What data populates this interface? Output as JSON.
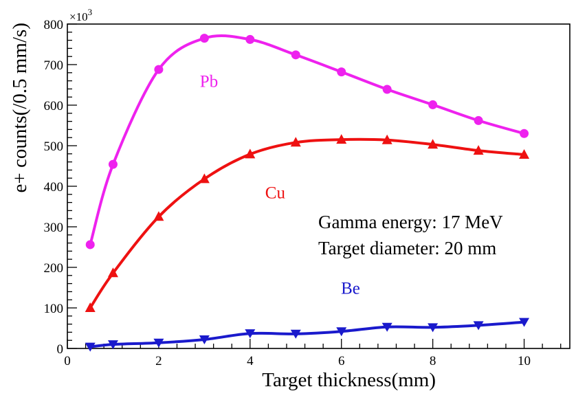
{
  "chart_data": {
    "type": "line",
    "xlabel": "Target thickness(mm)",
    "ylabel": "e+ counts(/0.5 mm/s)",
    "y_multiplier": "×10",
    "y_multiplier_exp": "3",
    "xlim": [
      0,
      11
    ],
    "ylim": [
      0,
      800
    ],
    "x_ticks": [
      0,
      2,
      4,
      6,
      8,
      10
    ],
    "x_tick_labels": [
      "0",
      "2",
      "4",
      "6",
      "8",
      "10"
    ],
    "y_ticks": [
      0,
      100,
      200,
      300,
      400,
      500,
      600,
      700,
      800
    ],
    "y_tick_labels": [
      "0",
      "100",
      "200",
      "300",
      "400",
      "500",
      "600",
      "700",
      "800"
    ],
    "grid": false,
    "legend": "none",
    "annotations": [
      "Gamma energy: 17 MeV",
      "Target diameter: 20 mm"
    ],
    "series": [
      {
        "name": "Pb",
        "color": "#ee22ee",
        "marker": "circle",
        "label_at": [
          3.1,
          645
        ],
        "x": [
          0.5,
          1,
          2,
          3,
          4,
          5,
          6,
          7,
          8,
          9,
          10
        ],
        "values": [
          256,
          454,
          688,
          765,
          762,
          724,
          682,
          639,
          601,
          562,
          530
        ]
      },
      {
        "name": "Cu",
        "color": "#ee1111",
        "marker": "triangle-up",
        "label_at": [
          4.55,
          370
        ],
        "x": [
          0.5,
          1,
          2,
          3,
          4,
          5,
          6,
          7,
          8,
          9,
          10
        ],
        "values": [
          100,
          186,
          325,
          418,
          479,
          508,
          515,
          514,
          503,
          488,
          478
        ]
      },
      {
        "name": "Be",
        "color": "#1a1acc",
        "marker": "triangle-down",
        "label_at": [
          6.2,
          135
        ],
        "x": [
          0.5,
          1,
          2,
          3,
          4,
          5,
          6,
          7,
          8,
          9,
          10
        ],
        "values": [
          4,
          10,
          14,
          22,
          37,
          36,
          42,
          53,
          52,
          57,
          65
        ]
      }
    ]
  }
}
